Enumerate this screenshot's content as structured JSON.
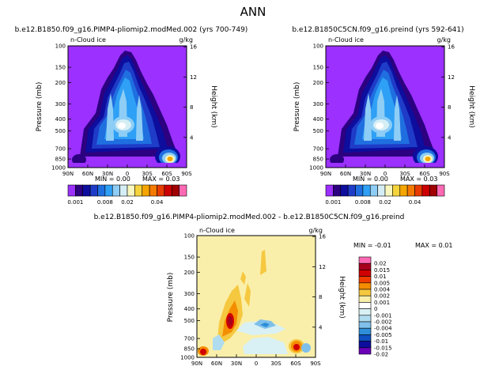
{
  "figure_title": "ANN",
  "colors": {
    "purple_bg": "#9b30ff",
    "left_scale": [
      "#9b30ff",
      "#2c0080",
      "#0d0d9e",
      "#1e3cc8",
      "#1f6fe0",
      "#2ea0f5",
      "#8ecdf5",
      "#d5eef5",
      "#f7f7bf",
      "#f5d33c",
      "#f5a500",
      "#f57a00",
      "#e83b00",
      "#cc0000",
      "#a10000",
      "#ff69b4"
    ],
    "diff_scale": [
      "#ff69b4",
      "#a8001e",
      "#d10000",
      "#f03c00",
      "#f58d00",
      "#f5c840",
      "#faefaa",
      "#ffffff",
      "#d9f0f5",
      "#b0dcf0",
      "#7fc0ea",
      "#2e8fd8",
      "#0f4fbf",
      "#0d0d9e",
      "#6a00b8"
    ]
  },
  "chart_data": [
    {
      "type": "heatmap",
      "panel": "left",
      "title": "b.e12.B1850.f09_g16.PIMP4-pliomip2.modMed.002 (yrs 700-749)",
      "variable_label": "n-Cloud ice",
      "units_label": "g/kg",
      "ylabel": "Pressure (mb)",
      "y2label": "Height (km)",
      "x_ticks": [
        "90N",
        "60N",
        "30N",
        "0",
        "30S",
        "60S",
        "90S"
      ],
      "y_ticks": [
        "100",
        "150",
        "200",
        "300",
        "400",
        "500",
        "700",
        "850",
        "1000"
      ],
      "y2_ticks": [
        "16",
        "12",
        "8",
        "4"
      ],
      "min_label": "MIN = 0.00",
      "max_label": "MAX = 0.03",
      "colorbar_labels": [
        "0.001",
        "0.008",
        "0.02",
        "0.04"
      ],
      "levels": [
        0.001,
        0.002,
        0.004,
        0.006,
        0.008,
        0.01,
        0.012,
        0.015,
        0.02,
        0.025,
        0.03,
        0.035,
        0.04,
        0.045,
        0.05
      ]
    },
    {
      "type": "heatmap",
      "panel": "right",
      "title": "b.e12.B1850C5CN.f09_g16.preind (yrs 592-641)",
      "variable_label": "n-Cloud ice",
      "units_label": "g/kg",
      "ylabel": "Pressure (mb)",
      "y2label": "Height (km)",
      "x_ticks": [
        "90N",
        "60N",
        "30N",
        "0",
        "30S",
        "60S",
        "90S"
      ],
      "y_ticks": [
        "100",
        "150",
        "200",
        "300",
        "400",
        "500",
        "700",
        "850",
        "1000"
      ],
      "y2_ticks": [
        "16",
        "12",
        "8",
        "4"
      ],
      "min_label": "MIN = 0.00",
      "max_label": "MAX = 0.03",
      "colorbar_labels": [
        "0.001",
        "0.008",
        "0.02",
        "0.04"
      ],
      "levels": [
        0.001,
        0.002,
        0.004,
        0.006,
        0.008,
        0.01,
        0.012,
        0.015,
        0.02,
        0.025,
        0.03,
        0.035,
        0.04,
        0.045,
        0.05
      ]
    },
    {
      "type": "heatmap",
      "panel": "difference",
      "title": "b.e12.B1850.f09_g16.PIMP4-pliomip2.modMed.002 - b.e12.B1850C5CN.f09_g16.preind",
      "variable_label": "n-Cloud ice",
      "units_label": "g/kg",
      "ylabel": "Pressure (mb)",
      "y2label": "Height (km)",
      "x_ticks": [
        "90N",
        "60N",
        "30N",
        "0",
        "30S",
        "60S",
        "90S"
      ],
      "y_ticks": [
        "100",
        "150",
        "200",
        "300",
        "400",
        "500",
        "700",
        "850",
        "1000"
      ],
      "y2_ticks": [
        "16",
        "12",
        "8",
        "4"
      ],
      "min_label": "MIN = -0.01",
      "max_label": "MAX = 0.01",
      "colorbar_labels": [
        "0.02",
        "0.015",
        "0.01",
        "0.005",
        "0.004",
        "0.002",
        "0.001",
        "0",
        "-0.001",
        "-0.002",
        "-0.004",
        "-0.005",
        "-0.01",
        "-0.015",
        "-0.02"
      ],
      "levels": [
        0.02,
        0.015,
        0.01,
        0.005,
        0.004,
        0.002,
        0.001,
        0,
        -0.001,
        -0.002,
        -0.004,
        -0.005,
        -0.01,
        -0.015,
        -0.02
      ]
    }
  ]
}
